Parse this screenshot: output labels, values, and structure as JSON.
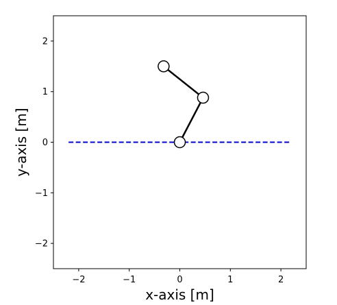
{
  "chart_data": {
    "type": "line",
    "title": "",
    "xlabel": "x-axis [m]",
    "ylabel": "y-axis [m]",
    "xlim": [
      -2.5,
      2.5
    ],
    "ylim": [
      -2.5,
      2.5
    ],
    "grid": false,
    "legend": "none",
    "xticks": [
      {
        "value": -2,
        "label": "−2"
      },
      {
        "value": -1,
        "label": "−1"
      },
      {
        "value": 0,
        "label": "0"
      },
      {
        "value": 1,
        "label": "1"
      },
      {
        "value": 2,
        "label": "2"
      }
    ],
    "yticks": [
      {
        "value": -2,
        "label": "−2"
      },
      {
        "value": -1,
        "label": "−1"
      },
      {
        "value": 0,
        "label": "0"
      },
      {
        "value": 1,
        "label": "1"
      },
      {
        "value": 2,
        "label": "2"
      }
    ],
    "ground_line": {
      "x": [
        -2.2,
        2.2
      ],
      "y": [
        0,
        0
      ],
      "color": "#0000cc",
      "style": "dashed"
    },
    "pendulum": {
      "x": [
        0.0,
        0.46,
        -0.32
      ],
      "y": [
        0.0,
        0.88,
        1.5
      ],
      "line_color": "#000000",
      "marker_fill": "#ffffff",
      "marker_edge": "#000000"
    }
  }
}
